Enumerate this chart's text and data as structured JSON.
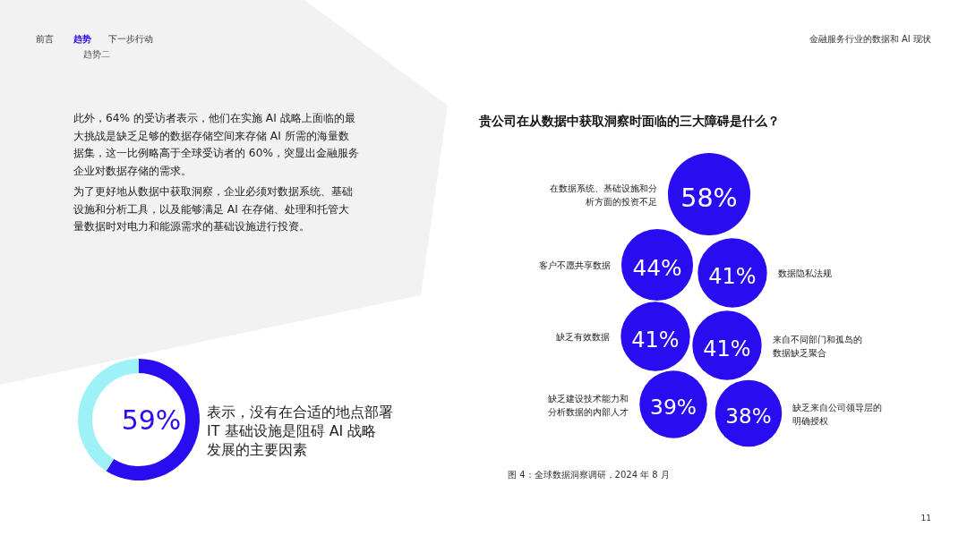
{
  "chart_data": [
    {
      "type": "donut",
      "categories": [
        null,
        null
      ],
      "values": [
        59,
        41
      ],
      "colors": [
        "#2a0cf0",
        "#9ef2f7"
      ],
      "value_labels": [
        "59%",
        null
      ],
      "annotations": [
        "前言",
        "趋势",
        "下一步行动",
        "趋势二",
        "金融服务行业的数据和 AI 现状",
        "此外，64% 的受访者表示，他们在实施 AI 战略上面临的最大挑战是缺乏足够的数据存储空间来存储 AI 所需的海量数据集，这一比例略高于全球受访者的 60%，突显出金融服务企业对数据存储的需求。",
        "为了更好地从数据中获取洞察，企业必须对数据系统、基础设施和分析工具，以及能够满足 AI 在存储、处理和托管大量数据时对电力和能源需求的基础设施进行投资。",
        "表示，没有在合适的地点部署 IT 基础设施是阻碍 AI 战略发展的主要因素",
        "11"
      ]
    },
    {
      "type": "other",
      "title": "贵公司在从数据中获取洞察时面临的三大障碍是什么？",
      "categories": [
        "在数据系统、基础设施和分析方面的投资不足",
        "客户不愿共享数据",
        "数据隐私法规",
        "缺乏有效数据",
        "来自不同部门和孤岛的数据缺乏聚合",
        "缺乏建设技术能力和分析数据的内部人才",
        "缺乏来自公司领导层的明确授权"
      ],
      "values": [
        58,
        44,
        41,
        41,
        41,
        39,
        38
      ],
      "color": "#2a0cf0",
      "value_labels": [
        "58%",
        "44%",
        "41%",
        "41%",
        "41%",
        "39%",
        "38%"
      ],
      "annotations": [
        "图 4：全球数据洞察调研，2024 年 8 月"
      ]
    }
  ]
}
